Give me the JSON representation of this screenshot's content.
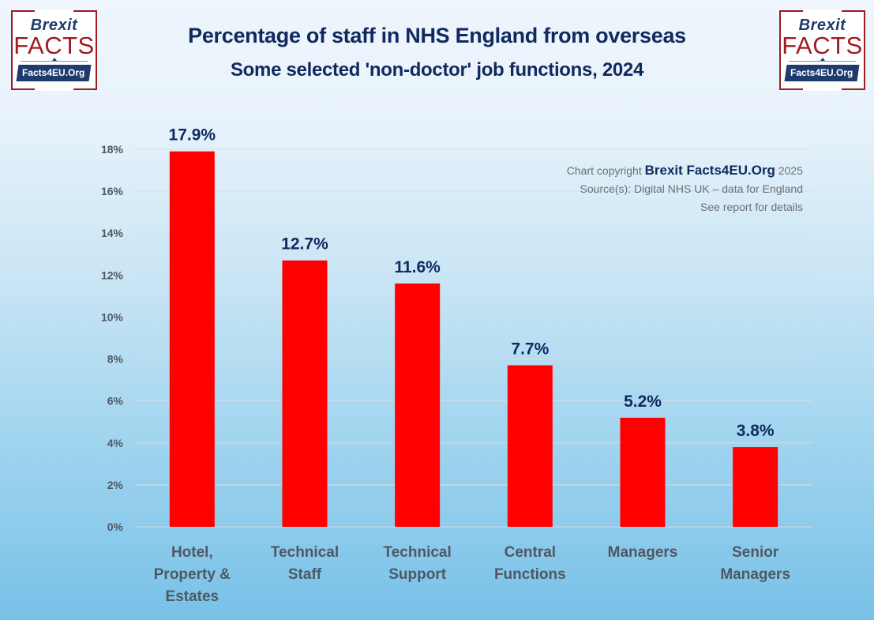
{
  "logo": {
    "line1": "Brexit",
    "line2": "FACTS",
    "line3": "Facts4EU.Org",
    "colors": {
      "navy": "#1f3a6e",
      "red": "#a11b22"
    }
  },
  "credits": {
    "prefix": "Chart copyright ",
    "brand": "Brexit Facts4EU.Org",
    "year": " 2025",
    "source": "Source(s): Digital NHS UK – data for England",
    "note": "See report for details"
  },
  "chart_data": {
    "type": "bar",
    "title": "Percentage of staff in NHS England from overseas",
    "subtitle": "Some selected 'non-doctor' job functions, 2024",
    "xlabel": "",
    "ylabel": "",
    "ylim": [
      0,
      18
    ],
    "yticks": [
      0,
      2,
      4,
      6,
      8,
      10,
      12,
      14,
      16,
      18
    ],
    "ytick_labels": [
      "0%",
      "2%",
      "4%",
      "6%",
      "8%",
      "10%",
      "12%",
      "14%",
      "16%",
      "18%"
    ],
    "grid": true,
    "legend": "none",
    "categories": [
      [
        "Hotel,",
        "Property &",
        "Estates"
      ],
      [
        "Technical",
        "Staff"
      ],
      [
        "Technical",
        "Support"
      ],
      [
        "Central",
        "Functions"
      ],
      [
        "Managers"
      ],
      [
        "Senior",
        "Managers"
      ]
    ],
    "values": [
      17.9,
      12.7,
      11.6,
      7.7,
      5.2,
      3.8
    ],
    "data_labels": [
      "17.9%",
      "12.7%",
      "11.6%",
      "7.7%",
      "5.2%",
      "3.8%"
    ],
    "colors": {
      "bar": "#ff0000",
      "data_label": "#10295e",
      "axis_text": "#4f5862",
      "grid": "#d9dde2"
    }
  }
}
